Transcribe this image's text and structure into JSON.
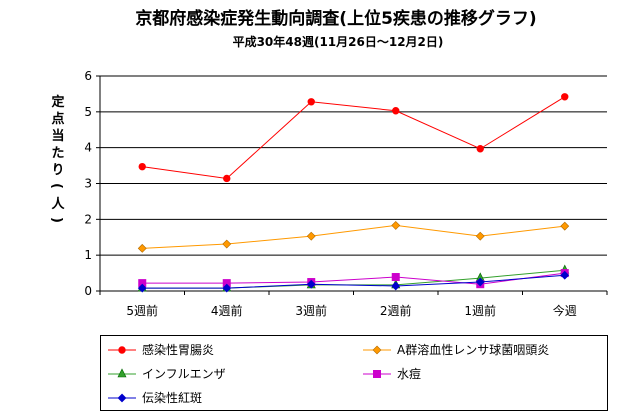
{
  "chart_data": {
    "type": "line",
    "title": "京都府感染症発生動向調査(上位5疾患の推移グラフ)",
    "subtitle": "平成30年48週(11月26日〜12月2日)",
    "ylabel": "定点当たり(人)",
    "xlabel": "",
    "categories": [
      "5週前",
      "4週前",
      "3週前",
      "2週前",
      "1週前",
      "今週"
    ],
    "ylim": [
      0,
      6
    ],
    "yticks": [
      0,
      1,
      2,
      3,
      4,
      5,
      6
    ],
    "grid": "horizontal",
    "legend_position": "bottom",
    "series": [
      {
        "name": "感染性胃腸炎",
        "color": "#ff0000",
        "marker": "circle",
        "values": [
          3.47,
          3.14,
          5.28,
          5.03,
          3.97,
          5.42
        ]
      },
      {
        "name": "A群溶血性レンサ球菌咽頭炎",
        "color": "#ff9900",
        "marker": "diamond",
        "values": [
          1.19,
          1.31,
          1.53,
          1.83,
          1.53,
          1.81
        ]
      },
      {
        "name": "インフルエンザ",
        "color": "#33a02c",
        "marker": "triangle",
        "values": [
          0.08,
          0.08,
          0.17,
          0.17,
          0.36,
          0.58
        ]
      },
      {
        "name": "水痘",
        "color": "#cc00cc",
        "marker": "square",
        "values": [
          0.22,
          0.22,
          0.25,
          0.39,
          0.19,
          0.5
        ]
      },
      {
        "name": "伝染性紅斑",
        "color": "#0000cc",
        "marker": "diamond",
        "values": [
          0.08,
          0.08,
          0.19,
          0.14,
          0.25,
          0.44
        ]
      }
    ]
  }
}
